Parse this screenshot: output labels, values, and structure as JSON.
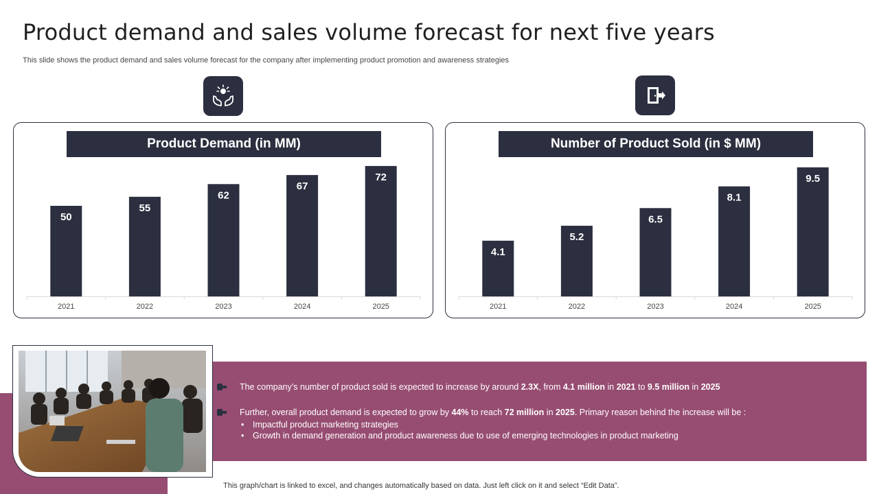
{
  "title": "Product demand and sales volume forecast for next five years",
  "subtitle": "This slide shows the product demand and sales volume forecast for the company after implementing product promotion and awareness strategies",
  "icons": {
    "left": "hands-with-idea-icon",
    "right": "door-exit-icon"
  },
  "colors": {
    "dark": "#2b2f3f",
    "accent": "#974d72",
    "white": "#ffffff"
  },
  "chart_data": [
    {
      "type": "bar",
      "title": "Product Demand (in MM)",
      "categories": [
        "2021",
        "2022",
        "2023",
        "2024",
        "2025"
      ],
      "values": [
        50,
        55,
        62,
        67,
        72
      ],
      "value_labels": [
        "50",
        "55",
        "62",
        "67",
        "72"
      ],
      "ylim": [
        0,
        75
      ],
      "grid": false,
      "legend": "none"
    },
    {
      "type": "bar",
      "title": "Number of Product Sold (in $ MM)",
      "categories": [
        "2021",
        "2022",
        "2023",
        "2024",
        "2025"
      ],
      "values": [
        4.1,
        5.2,
        6.5,
        8.1,
        9.5
      ],
      "value_labels": [
        "4.1",
        "5.2",
        "6.5",
        "8.1",
        "9.5"
      ],
      "ylim": [
        0,
        10
      ],
      "grid": false,
      "legend": "none"
    }
  ],
  "bullets": {
    "b1": {
      "t1": "The company’s number of product sold is expected to increase by around ",
      "h1": "2.3X",
      "t2": ", from ",
      "h2": "4.1 million",
      "t3": " in ",
      "h3": "2021",
      "t4": " to ",
      "h4": "9.5 million",
      "t5": " in ",
      "h5": "2025"
    },
    "b2": {
      "t1": "Further, overall product demand is expected to grow by ",
      "h1": "44%",
      "t2": " to reach ",
      "h2": "72 million",
      "t3": " in ",
      "h3": "2025",
      "t4": ". Primary reason behind the increase will be :"
    },
    "sub": [
      "Impactful product marketing strategies",
      "Growth in demand generation and product awareness due to use of emerging technologies in product marketing"
    ]
  },
  "footer": "This graph/chart is linked to excel,  and changes automatically based on data. Just left click on it and select “Edit Data”."
}
